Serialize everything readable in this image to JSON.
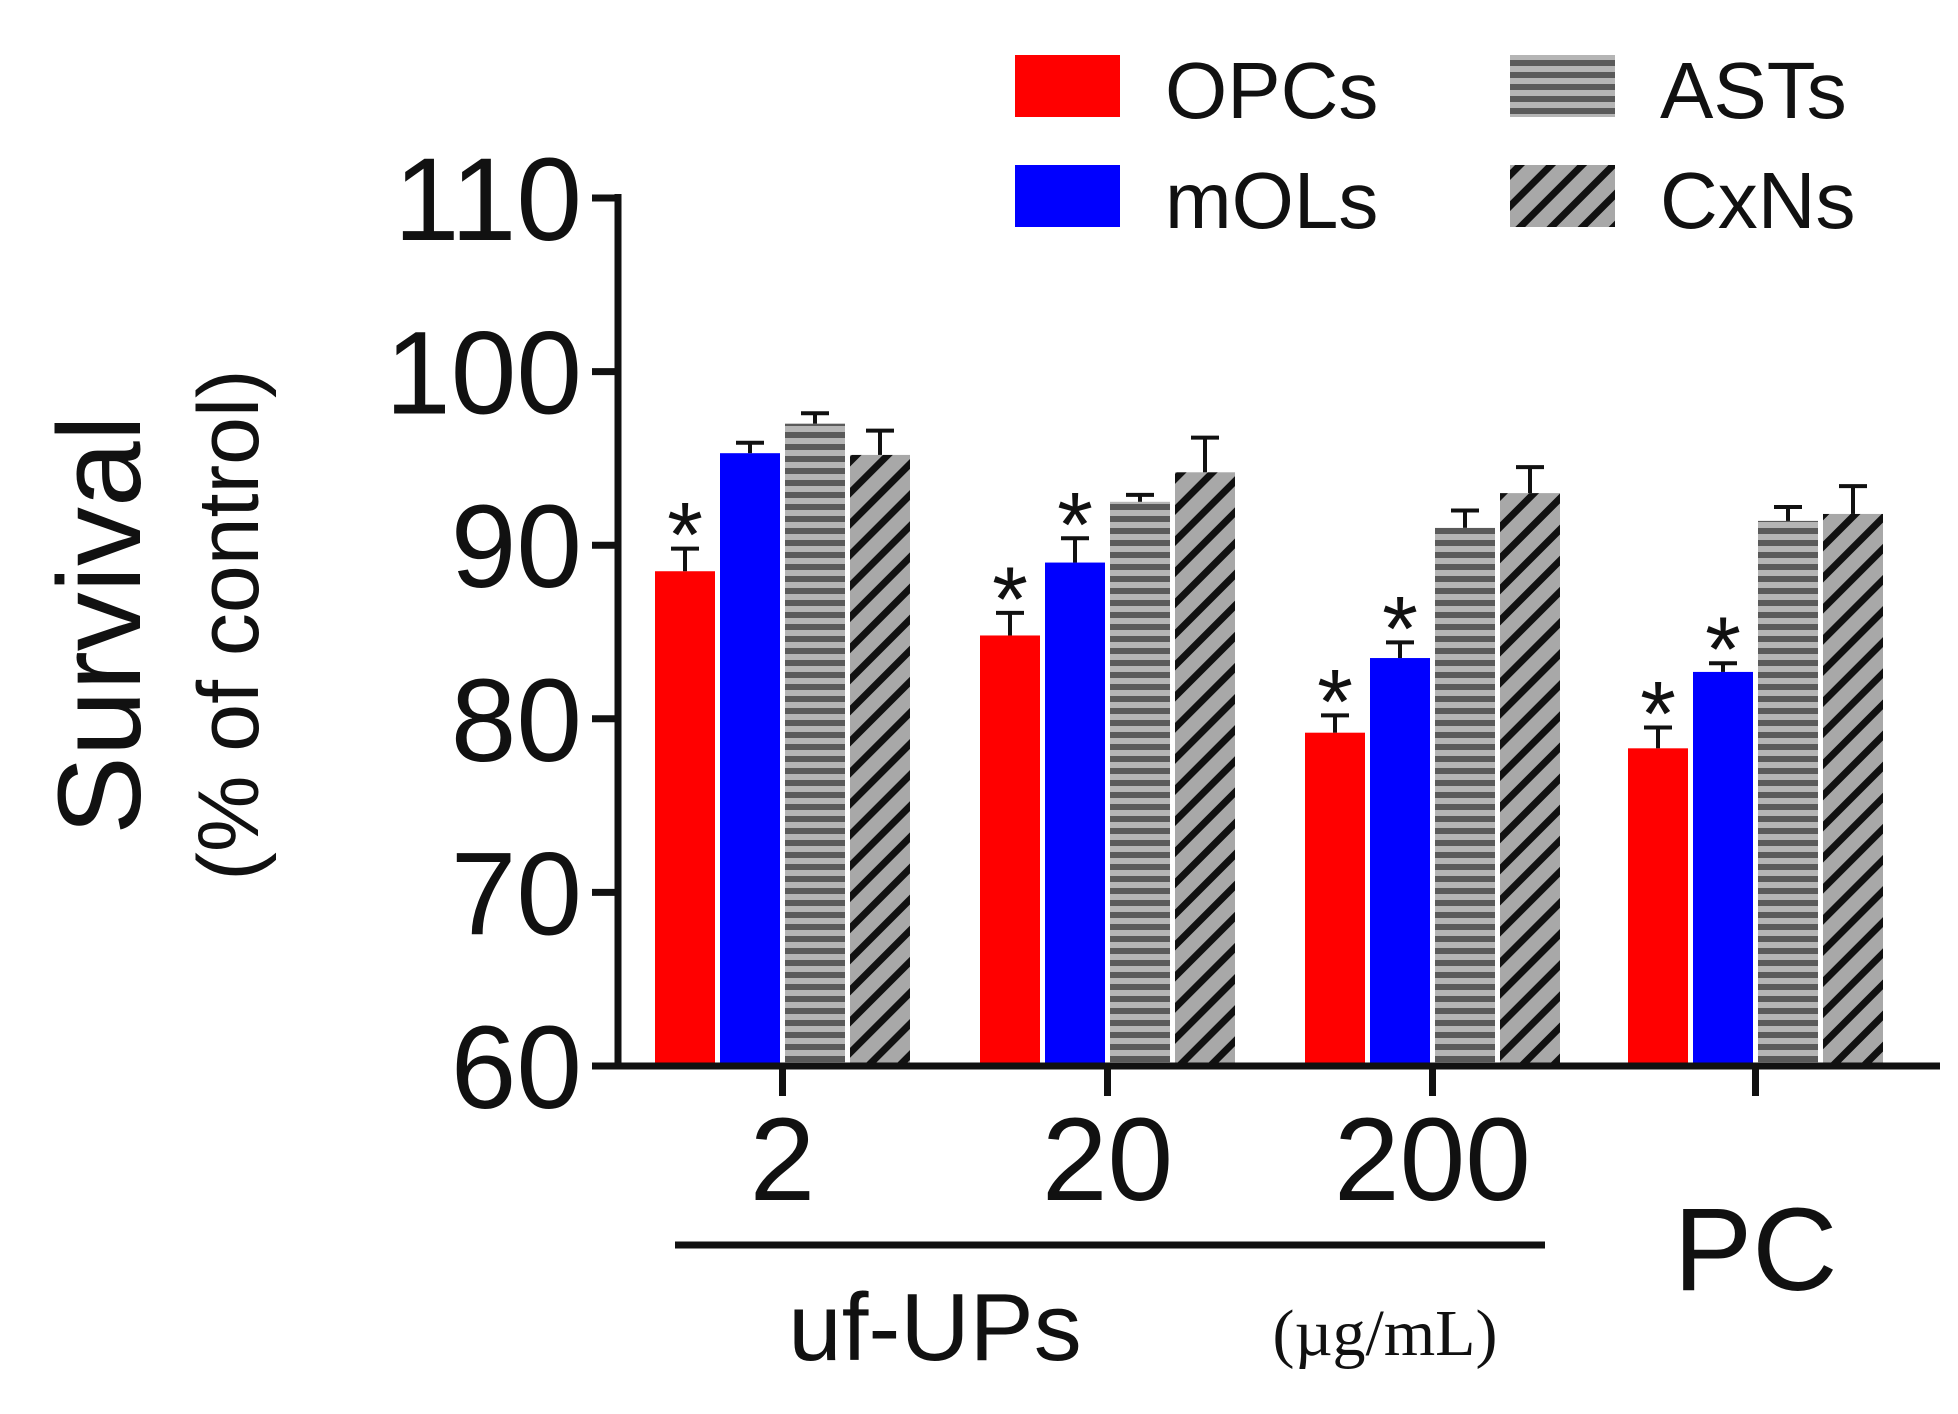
{
  "chart_data": {
    "type": "bar",
    "title": "",
    "ylabel": "Survival",
    "ylabel_sub": "(% of control)",
    "xlabel": "uf-UPs",
    "xlabel_unit": "(µg/mL)",
    "ylim": [
      60,
      110
    ],
    "yticks": [
      "60",
      "70",
      "80",
      "90",
      "100",
      "110"
    ],
    "categories": [
      "2",
      "20",
      "200",
      "PC"
    ],
    "grid": false,
    "legend_position": "top-right",
    "series": [
      {
        "name": "OPCs",
        "color": "#ff0000",
        "pattern": "solid",
        "values": [
          88.5,
          84.8,
          79.2,
          78.3
        ],
        "errors": [
          1.3,
          1.3,
          1.0,
          1.2
        ],
        "significant": [
          true,
          true,
          true,
          true
        ]
      },
      {
        "name": "mOLs",
        "color": "#0000ff",
        "pattern": "solid",
        "values": [
          95.3,
          89.0,
          83.5,
          82.7
        ],
        "errors": [
          0.6,
          1.4,
          0.9,
          0.5
        ],
        "significant": [
          false,
          true,
          true,
          true
        ]
      },
      {
        "name": "ASTs",
        "color": "#7f7f7f",
        "pattern": "horizontal-stripes",
        "values": [
          97.0,
          92.5,
          91.0,
          91.4
        ],
        "errors": [
          0.6,
          0.4,
          1.0,
          0.8
        ],
        "significant": [
          false,
          false,
          false,
          false
        ]
      },
      {
        "name": "CxNs",
        "color": "#9a9a9a",
        "pattern": "diagonal-stripes",
        "values": [
          95.2,
          94.2,
          93.0,
          91.8
        ],
        "errors": [
          1.4,
          2.0,
          1.5,
          1.6
        ],
        "significant": [
          false,
          false,
          false,
          false
        ]
      }
    ],
    "significance_marker": "*"
  }
}
